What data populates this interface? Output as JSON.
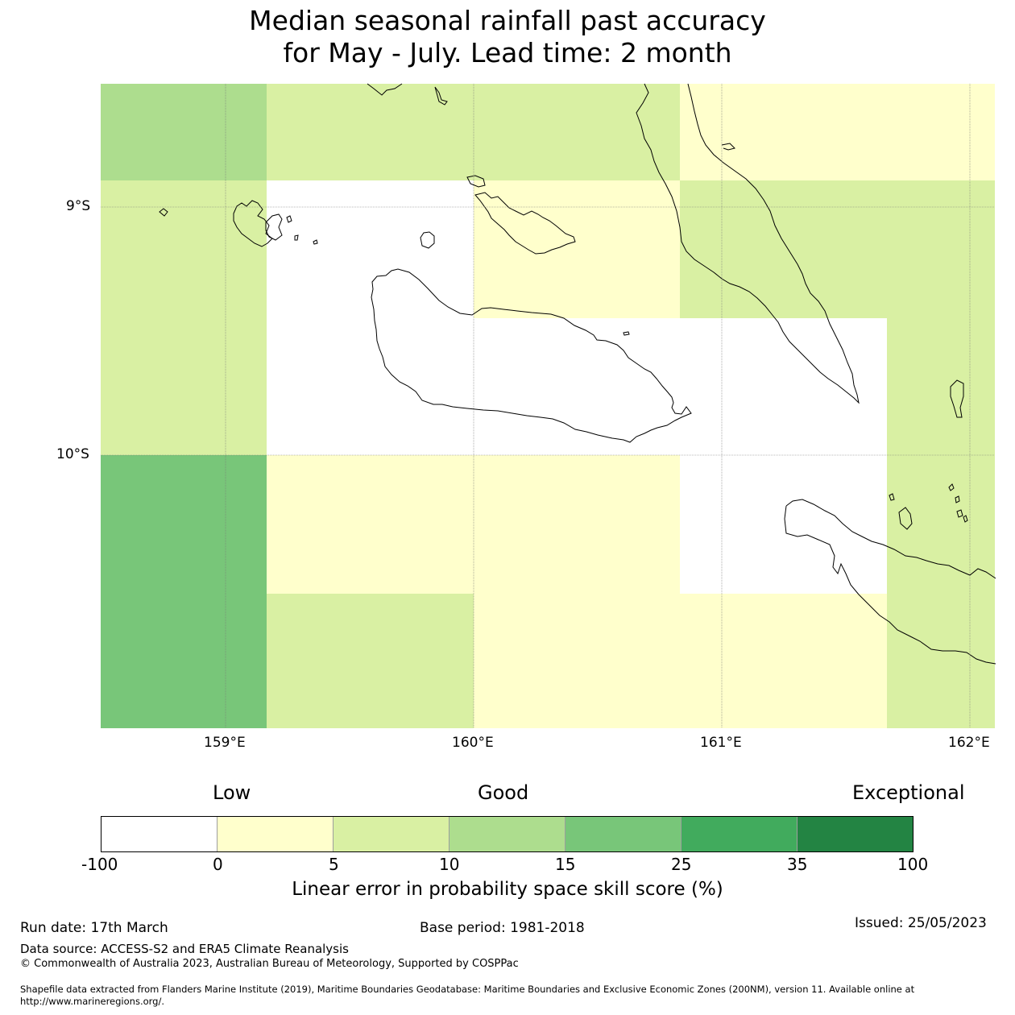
{
  "title": {
    "line1": "Median seasonal rainfall past accuracy",
    "line2": "for May - July. Lead time: 2 month"
  },
  "map": {
    "lat_labels": [
      "9°S",
      "10°S"
    ],
    "lon_labels": [
      "159°E",
      "160°E",
      "161°E",
      "162°E"
    ],
    "grid_cells": [
      {
        "row": 0,
        "col": 0,
        "color": "#addd8e",
        "category": "10-15"
      },
      {
        "row": 0,
        "col": 1,
        "color": "#d9f0a3",
        "category": "5-10"
      },
      {
        "row": 0,
        "col": 2,
        "color": "#d9f0a3",
        "category": "5-10"
      },
      {
        "row": 0,
        "col": 3,
        "color": "#ffffcc",
        "category": "0-5"
      },
      {
        "row": 0,
        "col": 4,
        "color": "#ffffcc",
        "category": "0-5"
      },
      {
        "row": 1,
        "col": 0,
        "color": "#d9f0a3",
        "category": "5-10"
      },
      {
        "row": 1,
        "col": 1,
        "color": "#ffffff",
        "category": "-100-0"
      },
      {
        "row": 1,
        "col": 2,
        "color": "#ffffcc",
        "category": "0-5"
      },
      {
        "row": 1,
        "col": 3,
        "color": "#d9f0a3",
        "category": "5-10"
      },
      {
        "row": 1,
        "col": 4,
        "color": "#d9f0a3",
        "category": "5-10"
      },
      {
        "row": 2,
        "col": 0,
        "color": "#d9f0a3",
        "category": "5-10"
      },
      {
        "row": 2,
        "col": 1,
        "color": "#ffffff",
        "category": "-100-0"
      },
      {
        "row": 2,
        "col": 2,
        "color": "#ffffff",
        "category": "-100-0"
      },
      {
        "row": 2,
        "col": 3,
        "color": "#ffffff",
        "category": "-100-0"
      },
      {
        "row": 2,
        "col": 4,
        "color": "#d9f0a3",
        "category": "5-10"
      },
      {
        "row": 3,
        "col": 0,
        "color": "#78c679",
        "category": "15-25"
      },
      {
        "row": 3,
        "col": 1,
        "color": "#ffffcc",
        "category": "0-5"
      },
      {
        "row": 3,
        "col": 2,
        "color": "#ffffcc",
        "category": "0-5"
      },
      {
        "row": 3,
        "col": 3,
        "color": "#ffffff",
        "category": "-100-0"
      },
      {
        "row": 3,
        "col": 4,
        "color": "#d9f0a3",
        "category": "5-10"
      },
      {
        "row": 4,
        "col": 0,
        "color": "#78c679",
        "category": "15-25"
      },
      {
        "row": 4,
        "col": 1,
        "color": "#d9f0a3",
        "category": "5-10"
      },
      {
        "row": 4,
        "col": 2,
        "color": "#ffffcc",
        "category": "0-5"
      },
      {
        "row": 4,
        "col": 3,
        "color": "#ffffcc",
        "category": "0-5"
      },
      {
        "row": 4,
        "col": 4,
        "color": "#d9f0a3",
        "category": "5-10"
      }
    ]
  },
  "colorbar": {
    "labels": {
      "low": "Low",
      "good": "Good",
      "exceptional": "Exceptional"
    },
    "ticks": [
      "-100",
      "0",
      "5",
      "10",
      "15",
      "25",
      "35",
      "100"
    ],
    "colors": [
      "#ffffff",
      "#ffffcc",
      "#d9f0a3",
      "#addd8e",
      "#78c679",
      "#41ab5d",
      "#238443"
    ],
    "title": "Linear error in probability space skill score (%)"
  },
  "footer": {
    "run_date": "Run date: 17th March",
    "base_period": "Base period: 1981-2018",
    "issued": "Issued: 25/05/2023",
    "data_source": "Data source: ACCESS-S2 and ERA5 Climate Reanalysis",
    "copyright": "© Commonwealth of Australia 2023, Australian Bureau of Meteorology, Supported by COSPPac",
    "shapefile_line1": "Shapefile data extracted from Flanders Marine Institute (2019), Maritime Boundaries Geodatabase: Maritime Boundaries and Exclusive Economic Zones (200NM), version 11. Available online at",
    "shapefile_line2": "http://www.marineregions.org/."
  }
}
